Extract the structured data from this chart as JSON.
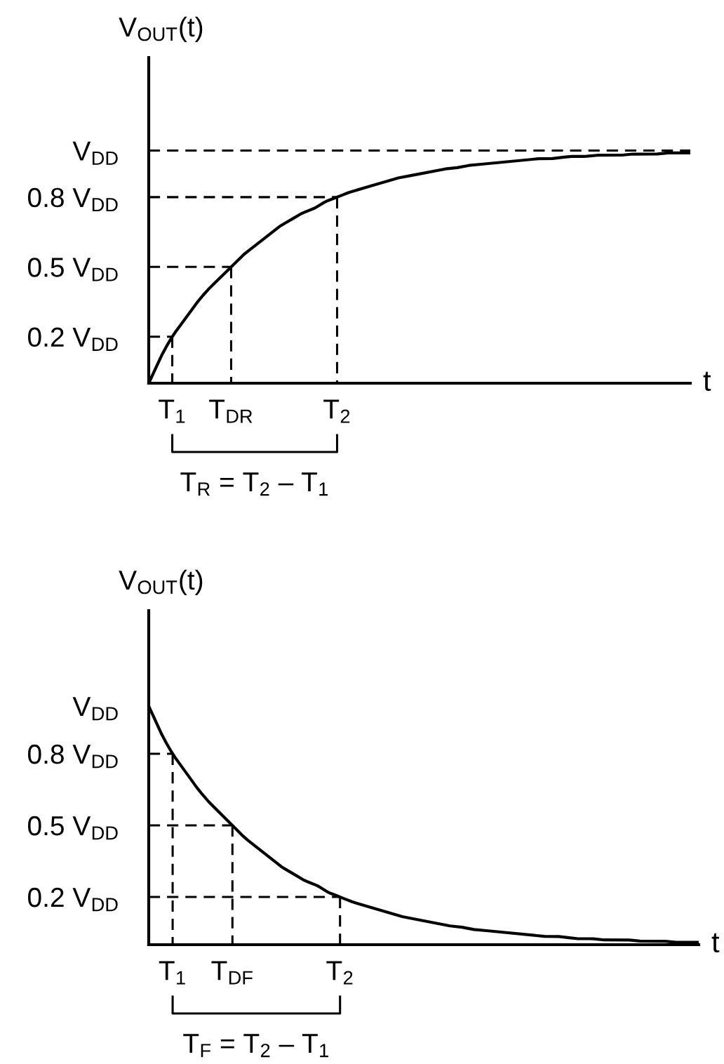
{
  "chart_data": [
    {
      "type": "line",
      "xlabel": "t",
      "ylabel": "V$_{OUT}$(t)",
      "ylim": [
        0,
        1.4
      ],
      "categories": [
        null,
        null,
        "T$_{1}$",
        null,
        null,
        null,
        null,
        "T$_{DR}$",
        null,
        null,
        null,
        null,
        null,
        null,
        null,
        null,
        "T$_{2}$",
        null,
        null,
        null,
        null,
        null,
        null,
        null,
        null,
        null,
        null,
        null,
        null,
        null,
        null,
        null,
        null,
        null,
        null,
        null,
        null,
        null,
        null,
        null,
        null,
        null,
        null,
        null,
        null,
        null,
        null
      ],
      "yticks": [
        {
          "value": 0.2,
          "label": "0.2 V$_{DD}$"
        },
        {
          "value": 0.5,
          "label": "0.5 V$_{DD}$"
        },
        {
          "value": 0.8,
          "label": "0.8 V$_{DD}$"
        },
        {
          "value": 1,
          "label": "V$_{DD}$"
        }
      ],
      "series": [
        {
          "color": "#000000",
          "line_style": "solid",
          "values": [
            0,
            0.11,
            0.2,
            0.27,
            0.34,
            0.4,
            0.45,
            0.5,
            0.55,
            0.59,
            0.63,
            0.67,
            0.7,
            0.73,
            0.75,
            0.78,
            0.8,
            0.82,
            0.835,
            0.85,
            0.865,
            0.88,
            0.89,
            0.9,
            0.91,
            0.92,
            0.925,
            0.935,
            0.94,
            0.945,
            0.95,
            0.955,
            0.96,
            0.965,
            0.965,
            0.97,
            0.975,
            0.975,
            0.98,
            0.98,
            0.98,
            0.985,
            0.985,
            0.985,
            0.99,
            0.99,
            0.99
          ]
        },
        {
          "color": "#000000",
          "line_style": "dashed",
          "values": [
            0.8,
            0.8,
            0.8,
            0.8,
            0.8,
            0.8,
            0.8,
            0.8,
            0.8,
            0.8,
            0.8,
            0.8,
            0.8,
            0.8,
            0.8,
            0.8,
            0.8,
            null,
            null,
            null,
            null,
            null,
            null,
            null,
            null,
            null,
            null,
            null,
            null,
            null,
            null,
            null,
            null,
            null,
            null,
            null,
            null,
            null,
            null,
            null,
            null,
            null,
            null,
            null,
            null,
            null,
            null
          ]
        },
        {
          "color": "#000000",
          "line_style": "dashed",
          "x": [
            "T$_{2}$",
            "T$_{2}$"
          ],
          "values": [
            0.8,
            0
          ]
        },
        {
          "color": "#000000",
          "line_style": "dashed",
          "values": [
            0.5,
            0.5,
            0.5,
            0.5,
            0.5,
            0.5,
            0.5,
            0.5,
            null,
            null,
            null,
            null,
            null,
            null,
            null,
            null,
            null,
            null,
            null,
            null,
            null,
            null,
            null,
            null,
            null,
            null,
            null,
            null,
            null,
            null,
            null,
            null,
            null,
            null,
            null,
            null,
            null,
            null,
            null,
            null,
            null,
            null,
            null,
            null,
            null,
            null,
            null
          ]
        },
        {
          "color": "#000000",
          "line_style": "dashed",
          "x": [
            "T$_{DR}$",
            "T$_{DR}$"
          ],
          "values": [
            0.5,
            0
          ]
        },
        {
          "color": "#000000",
          "line_style": "dashed",
          "values": [
            0.2,
            0.2,
            0.2,
            null,
            null,
            null,
            null,
            null,
            null,
            null,
            null,
            null,
            null,
            null,
            null,
            null,
            null,
            null,
            null,
            null,
            null,
            null,
            null,
            null,
            null,
            null,
            null,
            null,
            null,
            null,
            null,
            null,
            null,
            null,
            null,
            null,
            null,
            null,
            null,
            null,
            null,
            null,
            null,
            null,
            null,
            null,
            null
          ]
        },
        {
          "color": "#000000",
          "line_style": "dashed",
          "x": [
            "T$_{1}$",
            "T$_{1}$"
          ],
          "values": [
            0.2,
            0
          ]
        }
      ],
      "ref_lines": [
        {
          "axis": "y",
          "value": 1,
          "color": "#000000",
          "line_style": "dashed"
        }
      ],
      "annotations": [
        "T$_{R}$ = T$_{2}$ – T$_{1}$"
      ]
    },
    {
      "type": "line",
      "xlabel": "t",
      "ylabel": "V$_{OUT}$(t)",
      "ylim": [
        0,
        1.4
      ],
      "categories": [
        null,
        null,
        "T$_{1}$",
        null,
        null,
        null,
        null,
        "T$_{DF}$",
        null,
        null,
        null,
        null,
        null,
        null,
        null,
        null,
        "T$_{2}$",
        null,
        null,
        null,
        null,
        null,
        null,
        null,
        null,
        null,
        null,
        null,
        null,
        null,
        null,
        null,
        null,
        null,
        null,
        null,
        null,
        null,
        null,
        null,
        null,
        null,
        null,
        null,
        null,
        null,
        null
      ],
      "yticks": [
        {
          "value": 0.2,
          "label": "0.2 V$_{DD}$"
        },
        {
          "value": 0.5,
          "label": "0.5 V$_{DD}$"
        },
        {
          "value": 0.8,
          "label": "0.8 V$_{DD}$"
        },
        {
          "value": 1,
          "label": "V$_{DD}$"
        }
      ],
      "series": [
        {
          "color": "#000000",
          "line_style": "solid",
          "values": [
            1,
            0.89,
            0.8,
            0.73,
            0.66,
            0.6,
            0.55,
            0.5,
            0.45,
            0.41,
            0.37,
            0.33,
            0.3,
            0.27,
            0.25,
            0.22,
            0.2,
            0.18,
            0.165,
            0.15,
            0.135,
            0.12,
            0.11,
            0.1,
            0.09,
            0.08,
            0.075,
            0.065,
            0.06,
            0.055,
            0.05,
            0.045,
            0.04,
            0.035,
            0.035,
            0.03,
            0.025,
            0.025,
            0.02,
            0.02,
            0.02,
            0.015,
            0.015,
            0.015,
            0.01,
            0.01,
            0.01
          ]
        },
        {
          "color": "#000000",
          "line_style": "dashed",
          "values": [
            0.2,
            0.2,
            0.2,
            0.2,
            0.2,
            0.2,
            0.2,
            0.2,
            0.2,
            0.2,
            0.2,
            0.2,
            0.2,
            0.2,
            0.2,
            0.2,
            0.2,
            null,
            null,
            null,
            null,
            null,
            null,
            null,
            null,
            null,
            null,
            null,
            null,
            null,
            null,
            null,
            null,
            null,
            null,
            null,
            null,
            null,
            null,
            null,
            null,
            null,
            null,
            null,
            null,
            null,
            null
          ]
        },
        {
          "color": "#000000",
          "line_style": "dashed",
          "x": [
            "T$_{2}$",
            "T$_{2}$"
          ],
          "values": [
            0.2,
            0
          ]
        },
        {
          "color": "#000000",
          "line_style": "dashed",
          "values": [
            0.5,
            0.5,
            0.5,
            0.5,
            0.5,
            0.5,
            0.5,
            0.5,
            null,
            null,
            null,
            null,
            null,
            null,
            null,
            null,
            null,
            null,
            null,
            null,
            null,
            null,
            null,
            null,
            null,
            null,
            null,
            null,
            null,
            null,
            null,
            null,
            null,
            null,
            null,
            null,
            null,
            null,
            null,
            null,
            null,
            null,
            null,
            null,
            null,
            null,
            null
          ]
        },
        {
          "color": "#000000",
          "line_style": "dashed",
          "x": [
            "T$_{DF}$",
            "T$_{DF}$"
          ],
          "values": [
            0.5,
            0
          ]
        },
        {
          "color": "#000000",
          "line_style": "dashed",
          "values": [
            0.8,
            0.8,
            0.8,
            null,
            null,
            null,
            null,
            null,
            null,
            null,
            null,
            null,
            null,
            null,
            null,
            null,
            null,
            null,
            null,
            null,
            null,
            null,
            null,
            null,
            null,
            null,
            null,
            null,
            null,
            null,
            null,
            null,
            null,
            null,
            null,
            null,
            null,
            null,
            null,
            null,
            null,
            null,
            null,
            null,
            null,
            null,
            null
          ]
        },
        {
          "color": "#000000",
          "line_style": "dashed",
          "x": [
            "T$_{1}$",
            "T$_{1}$"
          ],
          "values": [
            0.8,
            0
          ]
        }
      ],
      "annotations": [
        "T$_{F}$ = T$_{2}$ – T$_{1}$"
      ]
    }
  ]
}
